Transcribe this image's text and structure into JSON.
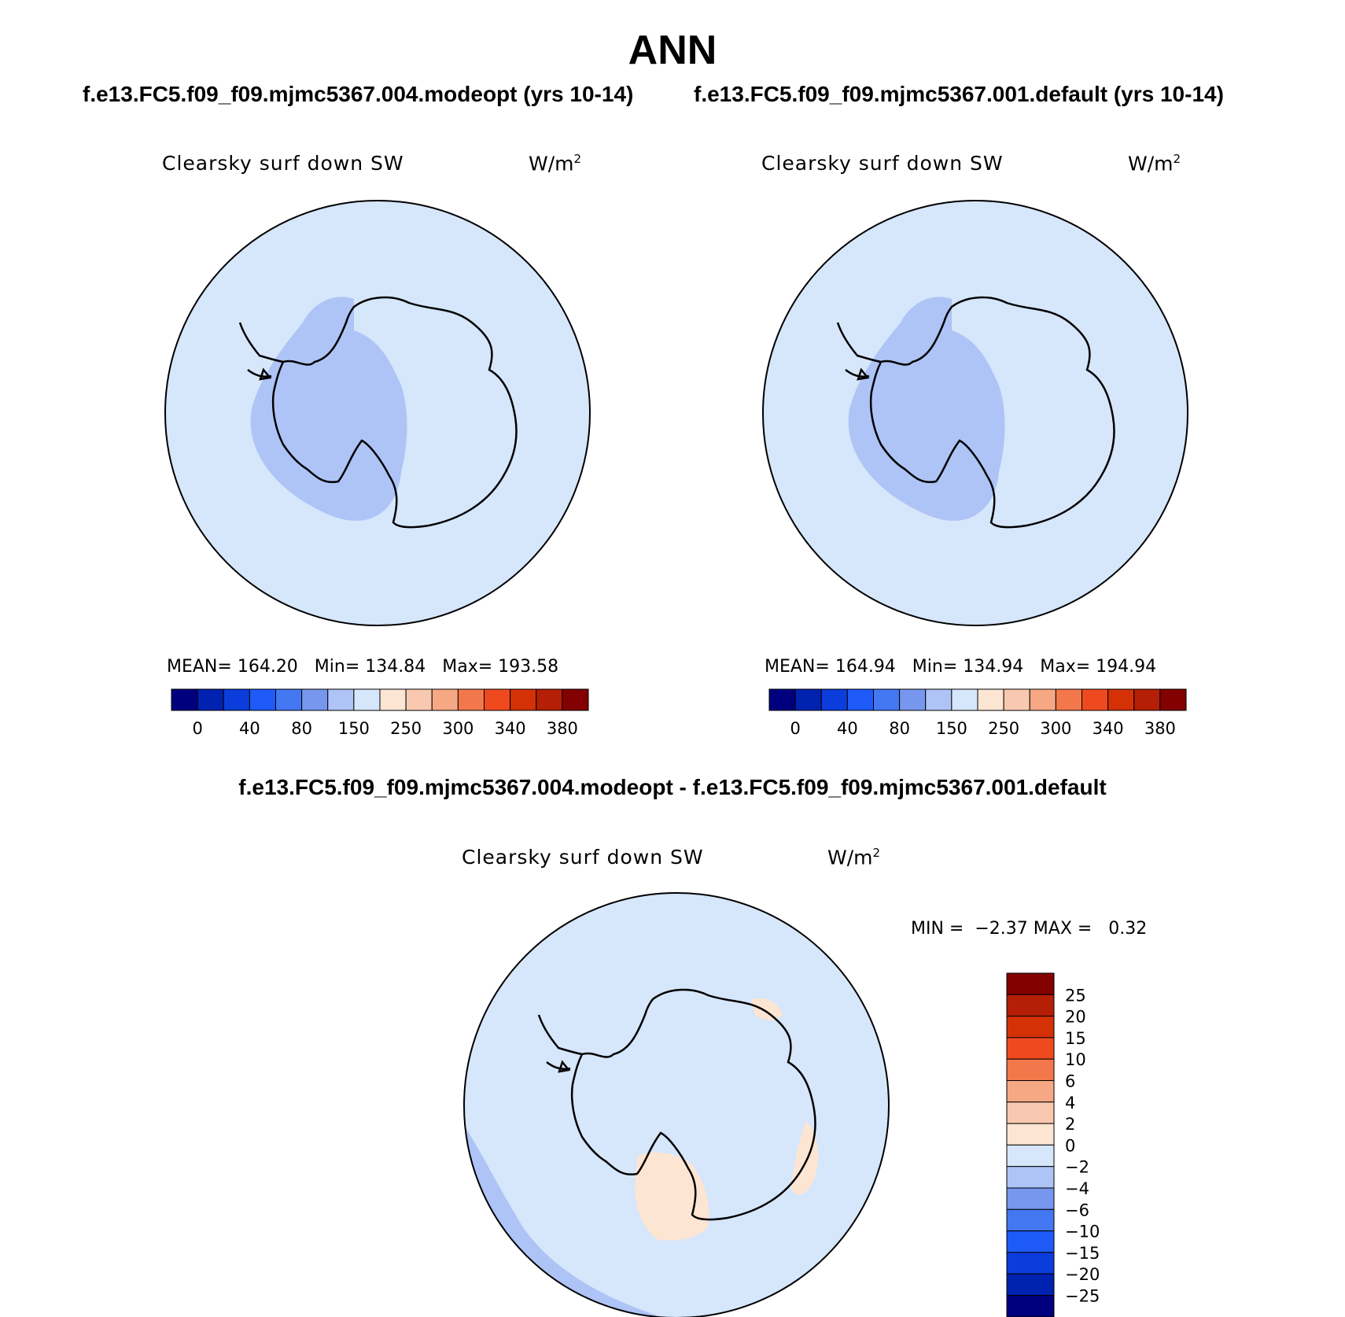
{
  "title": "ANN",
  "subtitle_left": "f.e13.FC5.f09_f09.mjmc5367.004.modeopt (yrs 10-14)",
  "subtitle_right": "f.e13.FC5.f09_f09.mjmc5367.001.default (yrs 10-14)",
  "diff_title": "f.e13.FC5.f09_f09.mjmc5367.004.modeopt - f.e13.FC5.f09_f09.mjmc5367.001.default",
  "variable": "Clearsky surf down SW",
  "units": "W/m",
  "units_power": "2",
  "panels": [
    {
      "mean_label": "MEAN=",
      "mean": "164.20",
      "min_label": "Min=",
      "min": "134.84",
      "max_label": "Max=",
      "max": "193.58"
    },
    {
      "mean_label": "MEAN=",
      "mean": "164.94",
      "min_label": "Min=",
      "min": "134.94",
      "max_label": "Max=",
      "max": "194.94"
    }
  ],
  "diff_stats": {
    "min_label": "MIN =",
    "min": "-2.37",
    "max_label": "MAX =",
    "max": "0.32"
  },
  "colorbar_top": {
    "colors": [
      "#00007f",
      "#0022b0",
      "#0a3ddb",
      "#1e5af7",
      "#4477f2",
      "#7797ee",
      "#aec3f6",
      "#d6e6fb",
      "#fde5d3",
      "#f8c9b0",
      "#f6a885",
      "#f2784b",
      "#ef4a1f",
      "#d53107",
      "#b41f06",
      "#840101"
    ],
    "labels": [
      "0",
      "40",
      "80",
      "150",
      "250",
      "300",
      "340",
      "380"
    ]
  },
  "colorbar_diff": {
    "colors": [
      "#840101",
      "#b41f06",
      "#d53107",
      "#ef4a1f",
      "#f2784b",
      "#f6a885",
      "#f8c9b0",
      "#fde5d3",
      "#d6e6fb",
      "#aec3f6",
      "#7797ee",
      "#4477f2",
      "#1e5af7",
      "#0a3ddb",
      "#0022b0",
      "#00007f"
    ],
    "labels": [
      "25",
      "20",
      "15",
      "10",
      "6",
      "4",
      "2",
      "0",
      "-2",
      "-4",
      "-6",
      "-10",
      "-15",
      "-20",
      "-25"
    ]
  },
  "map_colors": {
    "ocean": "#d6e6fb",
    "interior": "#aec3f6",
    "positive": "#fde5d3",
    "negative": "#aec3f6"
  }
}
